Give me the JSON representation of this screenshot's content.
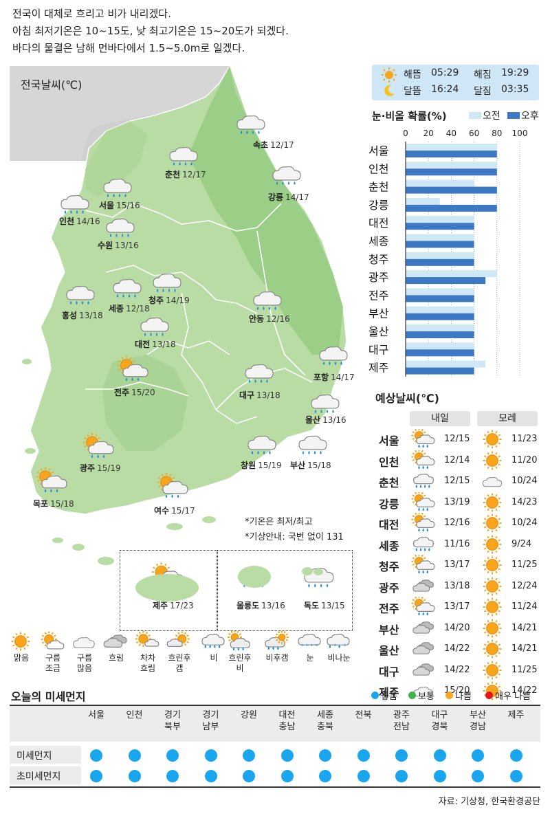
{
  "intro": [
    "전국이 대체로 흐리고 비가 내리겠다.",
    "아침 최저기온은 10~15도, 낮 최고기온은 15~20도가 되겠다.",
    "바다의 물결은 남해 먼바다에서 1.5~5.0m로 일겠다."
  ],
  "map": {
    "title": "전국날씨(℃)",
    "cities": [
      {
        "name": "속초",
        "temp": "12/17",
        "icon": "rain-icon"
      },
      {
        "name": "춘천",
        "temp": "12/17",
        "icon": "rain-icon"
      },
      {
        "name": "강릉",
        "temp": "14/17",
        "icon": "rain-icon"
      },
      {
        "name": "서울",
        "temp": "15/16",
        "icon": "rain-icon"
      },
      {
        "name": "인천",
        "temp": "14/16",
        "icon": "rain-icon"
      },
      {
        "name": "수원",
        "temp": "13/16",
        "icon": "rain-icon"
      },
      {
        "name": "홍성",
        "temp": "13/18",
        "icon": "rain-icon"
      },
      {
        "name": "세종",
        "temp": "12/18",
        "icon": "rain-icon"
      },
      {
        "name": "청주",
        "temp": "14/19",
        "icon": "rain-icon"
      },
      {
        "name": "대전",
        "temp": "13/18",
        "icon": "rain-icon"
      },
      {
        "name": "안동",
        "temp": "12/16",
        "icon": "rain-icon"
      },
      {
        "name": "전주",
        "temp": "15/20",
        "icon": "partly-cloudy-rain-icon"
      },
      {
        "name": "포항",
        "temp": "14/17",
        "icon": "rain-icon"
      },
      {
        "name": "대구",
        "temp": "13/18",
        "icon": "rain-icon"
      },
      {
        "name": "울산",
        "temp": "13/16",
        "icon": "rain-icon"
      },
      {
        "name": "광주",
        "temp": "15/19",
        "icon": "partly-cloudy-rain-icon"
      },
      {
        "name": "창원",
        "temp": "15/19",
        "icon": "rain-icon"
      },
      {
        "name": "부산",
        "temp": "15/18",
        "icon": "rain-icon"
      },
      {
        "name": "목포",
        "temp": "15/18",
        "icon": "partly-cloudy-rain-icon"
      },
      {
        "name": "여수",
        "temp": "15/17",
        "icon": "partly-cloudy-rain-icon"
      }
    ],
    "islands": [
      {
        "name": "제주",
        "temp": "17/23",
        "icon": "partly-cloudy-rain-icon"
      },
      {
        "name": "울릉도",
        "temp": "13/16",
        "icon": "rain-icon"
      },
      {
        "name": "독도",
        "temp": "13/15",
        "icon": "rain-icon"
      }
    ],
    "notes": [
      "*기온은 최저/최고",
      "*기상안내: 국번 없이 131"
    ]
  },
  "sun_moon": {
    "sunrise_label": "해뜸",
    "sunrise": "05:29",
    "sunset_label": "해짐",
    "sunset": "19:29",
    "moonrise_label": "달뜸",
    "moonrise": "16:24",
    "moonset_label": "달짐",
    "moonset": "03:35"
  },
  "chart_data": {
    "type": "bar",
    "title": "눈·비올 확률(%)",
    "categories": [
      "서울",
      "인천",
      "춘천",
      "강릉",
      "대전",
      "세종",
      "청주",
      "광주",
      "전주",
      "부산",
      "울산",
      "대구",
      "제주"
    ],
    "series": [
      {
        "name": "오전",
        "color": "#cfe8f6",
        "values": [
          80,
          80,
          60,
          30,
          60,
          60,
          60,
          80,
          60,
          60,
          60,
          60,
          70
        ]
      },
      {
        "name": "오후",
        "color": "#3c78c4",
        "values": [
          80,
          80,
          80,
          80,
          60,
          60,
          60,
          70,
          60,
          60,
          60,
          60,
          60
        ]
      }
    ],
    "xticks": [
      0,
      20,
      40,
      60,
      80,
      100
    ],
    "xlim": [
      0,
      100
    ]
  },
  "forecast": {
    "title": "예상날씨(℃)",
    "tomorrow_label": "내일",
    "dayafter_label": "모레",
    "rows": [
      {
        "city": "서울",
        "tomorrow_icon": "partly-cloudy-rain-icon",
        "tomorrow": "12/15",
        "dayafter_icon": "sunny-icon",
        "dayafter": "11/23"
      },
      {
        "city": "인천",
        "tomorrow_icon": "partly-cloudy-rain-icon",
        "tomorrow": "12/14",
        "dayafter_icon": "sunny-icon",
        "dayafter": "11/20"
      },
      {
        "city": "춘천",
        "tomorrow_icon": "rain-icon",
        "tomorrow": "12/15",
        "dayafter_icon": "cloudy-icon",
        "dayafter": "10/24"
      },
      {
        "city": "강릉",
        "tomorrow_icon": "partly-cloudy-rain-icon",
        "tomorrow": "13/19",
        "dayafter_icon": "sunny-icon",
        "dayafter": "14/23"
      },
      {
        "city": "대전",
        "tomorrow_icon": "partly-cloudy-rain-icon",
        "tomorrow": "12/16",
        "dayafter_icon": "sunny-icon",
        "dayafter": "10/24"
      },
      {
        "city": "세종",
        "tomorrow_icon": "rain-icon",
        "tomorrow": "11/16",
        "dayafter_icon": "sunny-icon",
        "dayafter": "9/24"
      },
      {
        "city": "청주",
        "tomorrow_icon": "partly-cloudy-rain-icon",
        "tomorrow": "13/17",
        "dayafter_icon": "sunny-icon",
        "dayafter": "11/25"
      },
      {
        "city": "광주",
        "tomorrow_icon": "overcast-icon",
        "tomorrow": "13/18",
        "dayafter_icon": "sunny-icon",
        "dayafter": "12/24"
      },
      {
        "city": "전주",
        "tomorrow_icon": "partly-cloudy-rain-icon",
        "tomorrow": "13/17",
        "dayafter_icon": "sunny-icon",
        "dayafter": "11/24"
      },
      {
        "city": "부산",
        "tomorrow_icon": "overcast-icon",
        "tomorrow": "14/20",
        "dayafter_icon": "sunny-icon",
        "dayafter": "14/21"
      },
      {
        "city": "울산",
        "tomorrow_icon": "overcast-icon",
        "tomorrow": "14/22",
        "dayafter_icon": "sunny-icon",
        "dayafter": "14/21"
      },
      {
        "city": "대구",
        "tomorrow_icon": "overcast-icon",
        "tomorrow": "14/22",
        "dayafter_icon": "sunny-icon",
        "dayafter": "11/25"
      },
      {
        "city": "제주",
        "tomorrow_icon": "cloudy-icon",
        "tomorrow": "15/20",
        "dayafter_icon": "sunny-icon",
        "dayafter": "14/22"
      }
    ]
  },
  "legend": [
    {
      "label": "맑음",
      "icon": "sunny-icon"
    },
    {
      "label": "구름\n조금",
      "icon": "partly-cloudy-icon"
    },
    {
      "label": "구름\n많음",
      "icon": "cloudy-icon"
    },
    {
      "label": "흐림",
      "icon": "overcast-icon"
    },
    {
      "label": "차차\n흐림",
      "icon": "gradually-cloudy-icon"
    },
    {
      "label": "흐린후\n갬",
      "icon": "clearing-icon"
    },
    {
      "label": "비",
      "icon": "rain-icon"
    },
    {
      "label": "흐린후\n비",
      "icon": "cloudy-then-rain-icon"
    },
    {
      "label": "비후갬",
      "icon": "rain-then-clear-icon"
    },
    {
      "label": "눈",
      "icon": "snow-icon"
    },
    {
      "label": "비나눈",
      "icon": "rain-or-snow-icon"
    }
  ],
  "dust": {
    "title": "오늘의 미세먼지",
    "legend": [
      {
        "label": "좋음",
        "color": "#1aa6ee"
      },
      {
        "label": "보통",
        "color": "#3cb54a"
      },
      {
        "label": "나쁨",
        "color": "#f5a623"
      },
      {
        "label": "매우 나쁨",
        "color": "#e8141d"
      }
    ],
    "regions": [
      "서울",
      "인천",
      "경기\n북부",
      "경기\n남부",
      "강원",
      "대전\n충남",
      "세종\n충북",
      "전북",
      "광주\n전남",
      "대구\n경북",
      "부산\n경남",
      "제주"
    ],
    "rows": [
      {
        "label": "미세먼지",
        "levels": [
          "좋음",
          "좋음",
          "좋음",
          "좋음",
          "좋음",
          "좋음",
          "좋음",
          "좋음",
          "좋음",
          "좋음",
          "좋음",
          "좋음"
        ]
      },
      {
        "label": "초미세먼지",
        "levels": [
          "좋음",
          "좋음",
          "좋음",
          "좋음",
          "좋음",
          "좋음",
          "좋음",
          "좋음",
          "좋음",
          "좋음",
          "좋음",
          "좋음"
        ]
      }
    ]
  },
  "source": "자료: 기상청, 한국환경공단"
}
